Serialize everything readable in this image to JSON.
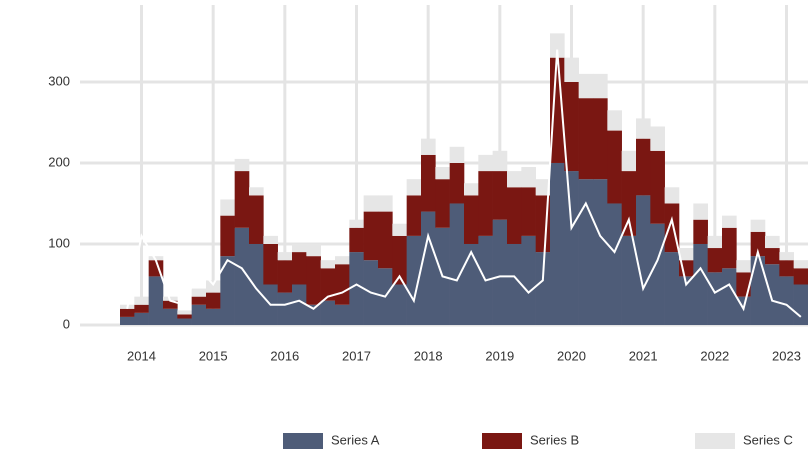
{
  "chart_data": {
    "type": "stacked-bar",
    "categories": [
      null,
      "2014",
      null,
      null,
      null,
      null,
      "2015",
      null,
      null,
      null,
      null,
      "2016",
      null,
      null,
      null,
      null,
      "2017",
      null,
      null,
      null,
      null,
      "2018",
      null,
      null,
      null,
      null,
      "2019",
      null,
      null,
      null,
      null,
      "2020",
      null,
      null,
      null,
      null,
      "2021",
      null,
      null,
      null,
      null,
      "2022",
      null,
      null,
      null,
      null,
      "2023",
      null
    ],
    "series": [
      {
        "name": "Series A",
        "color": "#4e5c78",
        "values": [
          10,
          15,
          60,
          20,
          8,
          25,
          20,
          85,
          120,
          100,
          50,
          40,
          50,
          25,
          30,
          25,
          90,
          80,
          70,
          50,
          110,
          140,
          120,
          150,
          100,
          110,
          130,
          100,
          110,
          90,
          200,
          190,
          180,
          180,
          150,
          110,
          160,
          125,
          90,
          60,
          100,
          65,
          70,
          35,
          85,
          75,
          60,
          50
        ]
      },
      {
        "name": "Series B",
        "color": "#7a1712",
        "values": [
          10,
          10,
          20,
          10,
          5,
          10,
          20,
          50,
          70,
          60,
          50,
          40,
          40,
          60,
          40,
          50,
          30,
          60,
          70,
          60,
          50,
          70,
          60,
          50,
          60,
          80,
          60,
          70,
          60,
          70,
          130,
          110,
          100,
          100,
          90,
          80,
          70,
          90,
          60,
          20,
          30,
          30,
          50,
          30,
          30,
          20,
          20,
          20
        ]
      },
      {
        "name": "Series C",
        "color": "#e6e6e6",
        "values": [
          5,
          10,
          5,
          5,
          5,
          10,
          15,
          20,
          15,
          10,
          10,
          10,
          10,
          15,
          10,
          10,
          10,
          20,
          20,
          15,
          20,
          20,
          15,
          20,
          15,
          20,
          25,
          20,
          25,
          20,
          30,
          30,
          30,
          30,
          25,
          25,
          25,
          30,
          20,
          15,
          20,
          15,
          15,
          15,
          15,
          15,
          10,
          10
        ]
      }
    ],
    "line": {
      "color": "#ffffff",
      "values": [
        20,
        110,
        80,
        30,
        25,
        70,
        50,
        80,
        70,
        45,
        25,
        25,
        30,
        20,
        35,
        40,
        50,
        40,
        35,
        60,
        30,
        110,
        60,
        55,
        90,
        55,
        60,
        60,
        40,
        55,
        340,
        120,
        150,
        110,
        90,
        130,
        45,
        80,
        130,
        50,
        70,
        40,
        50,
        20,
        90,
        30,
        25,
        10
      ]
    },
    "ylim": [
      0,
      395
    ],
    "yticks": [
      0,
      100,
      200,
      300
    ],
    "grid": true
  }
}
